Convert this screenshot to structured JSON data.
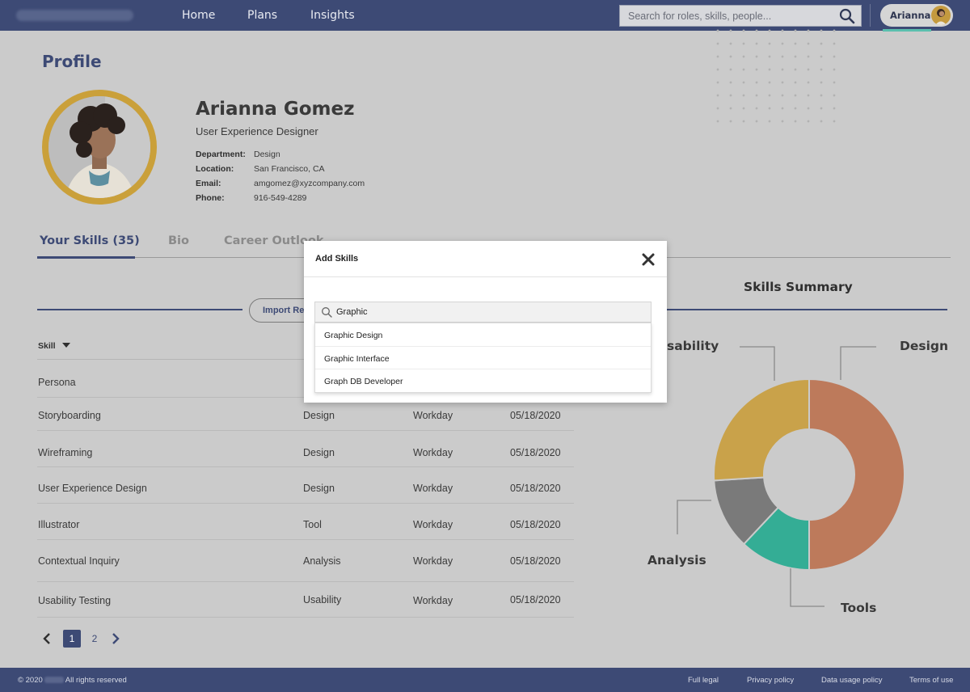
{
  "nav": {
    "links": [
      "Home",
      "Plans",
      "Insights"
    ],
    "search_placeholder": "Search for roles, skills, people...",
    "user_name": "Arianna"
  },
  "profile": {
    "page_title": "Profile",
    "name": "Arianna Gomez",
    "role": "User Experience Designer",
    "details": [
      {
        "label": "Department:",
        "value": "Design"
      },
      {
        "label": "Location:",
        "value": "San Francisco, CA"
      },
      {
        "label": "Email:",
        "value": "amgomez@xyzcompany.com"
      },
      {
        "label": "Phone:",
        "value": "916-549-4289"
      }
    ]
  },
  "tabs": [
    "Your Skills (35)",
    "Bio",
    "Career Outlook"
  ],
  "skills": {
    "import_label": "Import Re",
    "column_skill": "Skill",
    "rows": [
      {
        "skill": "Persona",
        "category": "",
        "source": "",
        "date": ""
      },
      {
        "skill": "Storyboarding",
        "category": "Design",
        "source": "Workday",
        "date": "05/18/2020"
      },
      {
        "skill": "Wireframing",
        "category": "Design",
        "source": "Workday",
        "date": "05/18/2020"
      },
      {
        "skill": "User Experience Design",
        "category": "Design",
        "source": "Workday",
        "date": "05/18/2020"
      },
      {
        "skill": "Illustrator",
        "category": "Tool",
        "source": "Workday",
        "date": "05/18/2020"
      },
      {
        "skill": "Contextual Inquiry",
        "category": "Analysis",
        "source": "Workday",
        "date": "05/18/2020"
      },
      {
        "skill": "Usability Testing",
        "category": "Usability",
        "source": "Workday",
        "date": "05/18/2020"
      }
    ],
    "pages": [
      "1",
      "2"
    ],
    "current_page": "1"
  },
  "summary": {
    "title": "Skills Summary",
    "chart_data": {
      "type": "pie",
      "donut": true,
      "categories": [
        "Design",
        "Tools",
        "Analysis",
        "Usability"
      ],
      "values": [
        50,
        12,
        12,
        26
      ],
      "colors": [
        "#bd7a5b",
        "#34ad95",
        "#7a7a7a",
        "#c9a24a"
      ],
      "legend": "callout-labels",
      "label_texts": [
        "Design",
        "Tools",
        "Analysis",
        "sability"
      ]
    }
  },
  "modal": {
    "title": "Add Skills",
    "search_value": "Graphic",
    "suggestions": [
      "Graphic Design",
      "Graphic Interface",
      "Graph DB Developer"
    ]
  },
  "footer": {
    "copyright_prefix": "© 2020",
    "copyright_suffix": "All rights reserved",
    "links": [
      "Full legal",
      "Privacy policy",
      "Data usage policy",
      "Terms of use"
    ]
  }
}
